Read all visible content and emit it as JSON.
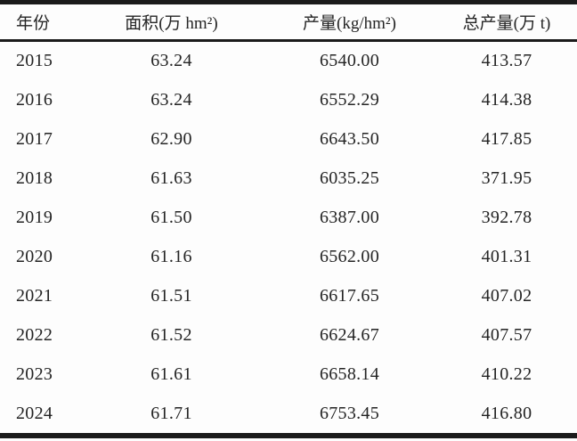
{
  "colors": {
    "rule": "#1b1b1b",
    "text": "#242424",
    "background": "#fdfdfd"
  },
  "table": {
    "headers": [
      "年份",
      "面积(万 hm²)",
      "产量(kg/hm²)",
      "总产量(万 t)"
    ],
    "rows": [
      {
        "year": "2015",
        "area": "63.24",
        "yield": "6540.00",
        "total": "413.57"
      },
      {
        "year": "2016",
        "area": "63.24",
        "yield": "6552.29",
        "total": "414.38"
      },
      {
        "year": "2017",
        "area": "62.90",
        "yield": "6643.50",
        "total": "417.85"
      },
      {
        "year": "2018",
        "area": "61.63",
        "yield": "6035.25",
        "total": "371.95"
      },
      {
        "year": "2019",
        "area": "61.50",
        "yield": "6387.00",
        "total": "392.78"
      },
      {
        "year": "2020",
        "area": "61.16",
        "yield": "6562.00",
        "total": "401.31"
      },
      {
        "year": "2021",
        "area": "61.51",
        "yield": "6617.65",
        "total": "407.02"
      },
      {
        "year": "2022",
        "area": "61.52",
        "yield": "6624.67",
        "total": "407.57"
      },
      {
        "year": "2023",
        "area": "61.61",
        "yield": "6658.14",
        "total": "410.22"
      },
      {
        "year": "2024",
        "area": "61.71",
        "yield": "6753.45",
        "total": "416.80"
      }
    ]
  },
  "chart_data": {
    "type": "table",
    "columns": [
      "年份",
      "面积(万 hm²)",
      "产量(kg/hm²)",
      "总产量(万 t)"
    ],
    "rows": [
      [
        "2015",
        63.24,
        6540.0,
        413.57
      ],
      [
        "2016",
        63.24,
        6552.29,
        414.38
      ],
      [
        "2017",
        62.9,
        6643.5,
        417.85
      ],
      [
        "2018",
        61.63,
        6035.25,
        371.95
      ],
      [
        "2019",
        61.5,
        6387.0,
        392.78
      ],
      [
        "2020",
        61.16,
        6562.0,
        401.31
      ],
      [
        "2021",
        61.51,
        6617.65,
        407.02
      ],
      [
        "2022",
        61.52,
        6624.67,
        407.57
      ],
      [
        "2023",
        61.61,
        6658.14,
        410.22
      ],
      [
        "2024",
        61.71,
        6753.45,
        416.8
      ]
    ],
    "title": "",
    "notes": "three-line academic table, thick top/bottom rules, medium header rule, no vertical lines"
  }
}
